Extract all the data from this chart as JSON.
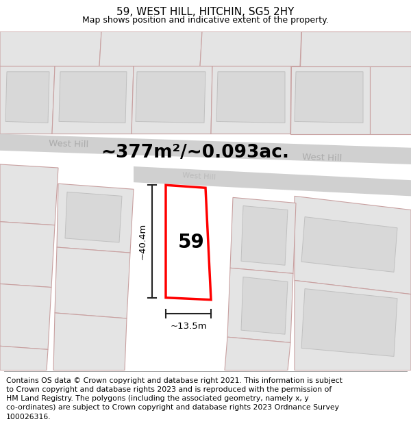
{
  "title": "59, WEST HILL, HITCHIN, SG5 2HY",
  "subtitle": "Map shows position and indicative extent of the property.",
  "footer": "Contains OS data © Crown copyright and database right 2021. This information is subject\nto Crown copyright and database rights 2023 and is reproduced with the permission of\nHM Land Registry. The polygons (including the associated geometry, namely x, y\nco-ordinates) are subject to Crown copyright and database rights 2023 Ordnance Survey\n100026316.",
  "area_label": "~377m²/~0.093ac.",
  "number_label": "59",
  "dim_width_label": "~13.5m",
  "dim_height_label": "~40.4m",
  "map_bg": "#f0f0f0",
  "road_color": "#d0d0d0",
  "block_fill": "#e4e4e4",
  "block_edge": "#c8a0a0",
  "block_inner_fill": "#d8d8d8",
  "block_inner_edge": "#c0c0c0",
  "red_plot_color": "#ff0000",
  "dim_line_color": "#222222",
  "title_fontsize": 11,
  "subtitle_fontsize": 9,
  "footer_fontsize": 7.8,
  "area_fontsize": 19,
  "number_fontsize": 20,
  "dim_fontsize": 9.5,
  "road_label_fontsize": 9.5,
  "road_label_color": "#aaaaaa"
}
